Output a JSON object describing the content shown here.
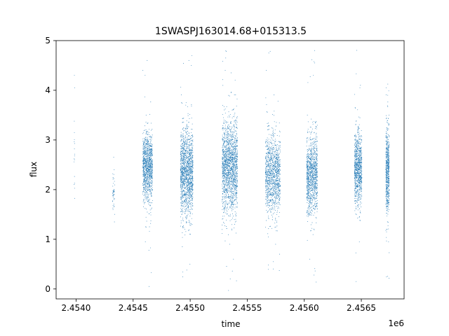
{
  "chart_data": {
    "type": "scatter",
    "title": "1SWASPJ163014.68+015313.5",
    "xlabel": "time",
    "ylabel": "flux",
    "x_offset_label": "1e6",
    "xlim": [
      2453825,
      2456875
    ],
    "ylim": [
      -0.2,
      5.0
    ],
    "x_ticks": [
      2454000,
      2454500,
      2455000,
      2455500,
      2456000,
      2456500
    ],
    "x_tick_labels": [
      "2.4540",
      "2.4545",
      "2.4550",
      "2.4555",
      "2.4560",
      "2.4565"
    ],
    "y_ticks": [
      0,
      1,
      2,
      3,
      4,
      5
    ],
    "y_tick_labels": [
      "0",
      "1",
      "2",
      "3",
      "4",
      "5"
    ],
    "grid": false,
    "marker_color": "#1f77b4",
    "seasons": [
      {
        "start": 2453983,
        "end": 2453988,
        "count": 14,
        "center": 2.7,
        "spread": 0.55,
        "outliers": [
          4.3,
          4.05,
          3.15,
          2.56
        ]
      },
      {
        "start": 2454320,
        "end": 2454338,
        "count": 45,
        "center": 2.0,
        "spread": 0.22,
        "outliers": [
          2.65,
          1.35,
          1.6
        ]
      },
      {
        "start": 2454585,
        "end": 2454670,
        "count": 1100,
        "center": 2.45,
        "spread": 0.32,
        "outliers": [
          4.6,
          4.3,
          0.78,
          0.33,
          0.05,
          4.4
        ]
      },
      {
        "start": 2454915,
        "end": 2455025,
        "count": 1500,
        "center": 2.35,
        "spread": 0.42,
        "outliers": [
          4.7,
          4.6,
          0.5,
          0.38,
          0.85,
          4.5
        ]
      },
      {
        "start": 2455280,
        "end": 2455415,
        "count": 1700,
        "center": 2.45,
        "spread": 0.45,
        "outliers": [
          4.4,
          4.78,
          0.6,
          0.36,
          0.9,
          4.65
        ]
      },
      {
        "start": 2455660,
        "end": 2455790,
        "count": 1200,
        "center": 2.3,
        "spread": 0.38,
        "outliers": [
          4.4,
          4.75,
          0.7,
          0.55,
          0.9
        ]
      },
      {
        "start": 2456020,
        "end": 2456115,
        "count": 1100,
        "center": 2.3,
        "spread": 0.38,
        "outliers": [
          4.8,
          4.55,
          0.6,
          0.28,
          4.3
        ]
      },
      {
        "start": 2456440,
        "end": 2456505,
        "count": 900,
        "center": 2.45,
        "spread": 0.36,
        "outliers": [
          4.1,
          0.95,
          0.15,
          4.05
        ]
      },
      {
        "start": 2456715,
        "end": 2456745,
        "count": 600,
        "center": 2.35,
        "spread": 0.42,
        "outliers": [
          4.05,
          0.73,
          0.95,
          3.9
        ]
      }
    ]
  }
}
